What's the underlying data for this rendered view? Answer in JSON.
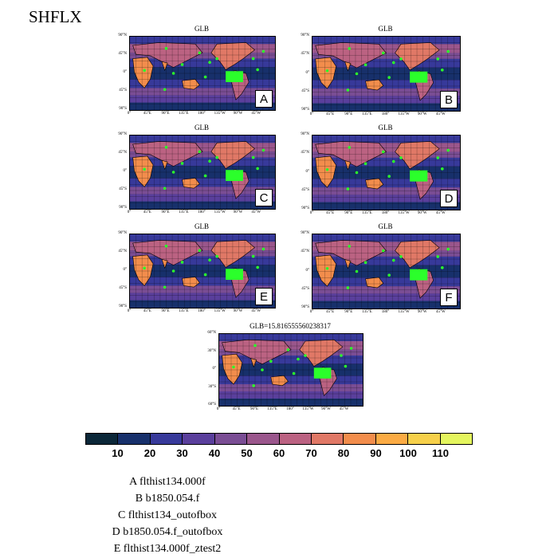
{
  "title": "SHFLX",
  "panels": [
    {
      "title": "GLB",
      "letter": "A",
      "lat_labels": [
        "90°N",
        "45°N",
        "0°",
        "45°S",
        "90°S"
      ]
    },
    {
      "title": "GLB",
      "letter": "B",
      "lat_labels": [
        "90°N",
        "45°N",
        "0°",
        "45°S",
        "90°S"
      ]
    },
    {
      "title": "GLB",
      "letter": "C",
      "lat_labels": [
        "90°N",
        "45°N",
        "0°",
        "45°S",
        "90°S"
      ]
    },
    {
      "title": "GLB",
      "letter": "D",
      "lat_labels": [
        "90°N",
        "45°N",
        "0°",
        "45°S",
        "90°S"
      ]
    },
    {
      "title": "GLB",
      "letter": "E",
      "lat_labels": [
        "90°N",
        "45°N",
        "0°",
        "45°S",
        "90°S"
      ]
    },
    {
      "title": "GLB",
      "letter": "F",
      "lat_labels": [
        "90°N",
        "45°N",
        "0°",
        "45°S",
        "90°S"
      ]
    },
    {
      "title": "GLB=15.816555560238317",
      "letter": "",
      "lat_labels": [
        "60°N",
        "30°N",
        "0°",
        "30°S",
        "60°S"
      ]
    }
  ],
  "lon_labels": [
    "0°",
    "45°E",
    "90°E",
    "135°E",
    "180°",
    "135°W",
    "90°W",
    "45°W"
  ],
  "chart_data": {
    "type": "heatmap",
    "variable": "SHFLX",
    "colorbar": {
      "levels": [
        10,
        20,
        30,
        40,
        50,
        60,
        70,
        80,
        90,
        100,
        110
      ],
      "colors": [
        "#0b2738",
        "#17306b",
        "#37399a",
        "#5a3f9c",
        "#7a4d94",
        "#9a568c",
        "#bb6282",
        "#e07866",
        "#f28d4c",
        "#fbab44",
        "#f6d04a",
        "#e4f55e"
      ]
    },
    "legend": [
      "A  flthist134.000f",
      "B  b1850.054.f",
      "C  flthist134_outofbox",
      "D  b1850.054.f_outofbox",
      "E  flthist134.000f_ztest2"
    ]
  }
}
